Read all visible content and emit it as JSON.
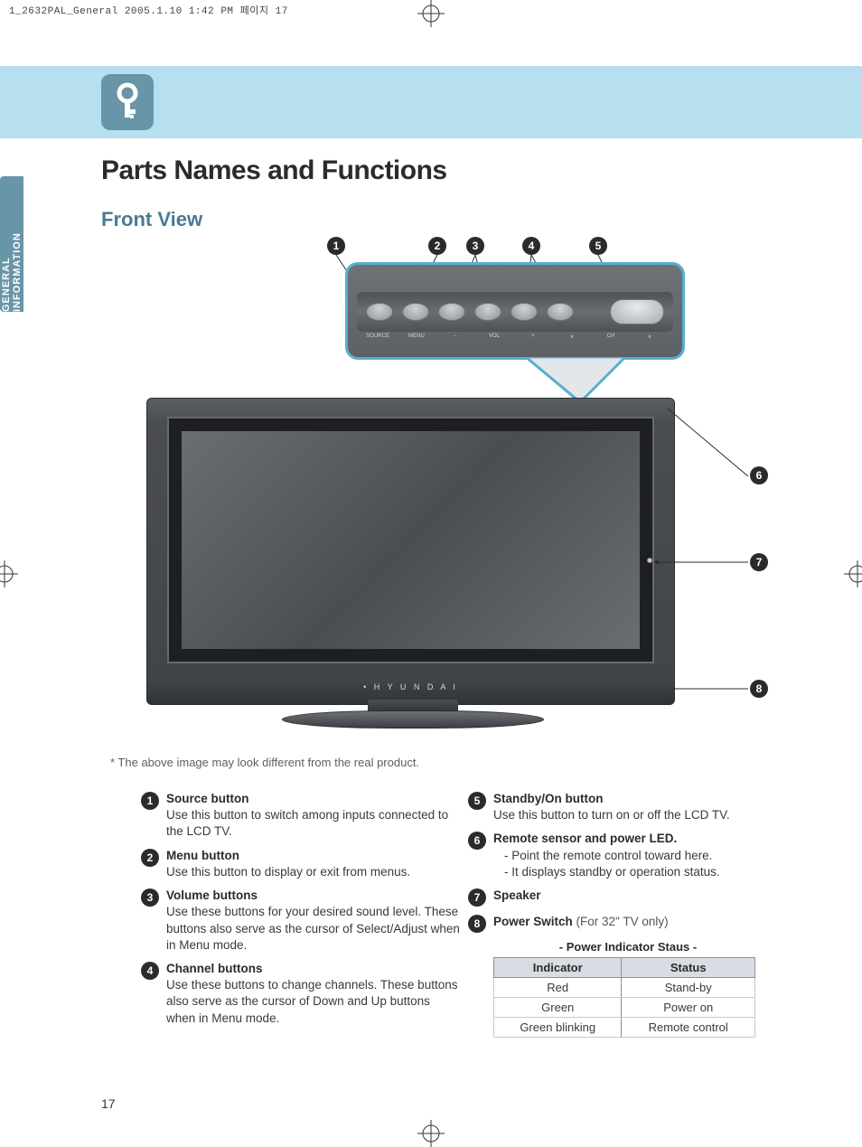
{
  "print_header": "1_2632PAL_General  2005.1.10 1:42 PM  페이지 17",
  "sidebar_label": "GENERAL INFORMATION",
  "title": "Parts Names and Functions",
  "subtitle": "Front View",
  "disclaimer": "* The above image may look different from the real product.",
  "tv_brand": "• H Y U N D A I",
  "panel_labels": [
    "SOURCE",
    "MENU",
    "-",
    "VOL",
    "+",
    "∨",
    "CH",
    "∧"
  ],
  "callouts_top": [
    "1",
    "2",
    "3",
    "4",
    "5"
  ],
  "callouts_side": [
    "6",
    "7",
    "8"
  ],
  "items_left": [
    {
      "num": "1",
      "title": "Source button",
      "desc": "Use this button to switch among inputs connected to the LCD TV."
    },
    {
      "num": "2",
      "title": "Menu button",
      "desc": "Use this button to display or exit from menus."
    },
    {
      "num": "3",
      "title": "Volume buttons",
      "desc": "Use these buttons for your desired sound level. These buttons also serve as the cursor of Select/Adjust when in Menu mode."
    },
    {
      "num": "4",
      "title": "Channel buttons",
      "desc": "Use these buttons to change channels. These buttons also serve as the cursor of Down and Up buttons when in Menu mode."
    }
  ],
  "items_right": [
    {
      "num": "5",
      "title": "Standby/On button",
      "desc": "Use this button to turn on or off the LCD TV."
    },
    {
      "num": "6",
      "title": "Remote sensor and power LED.",
      "desc": "",
      "subs": [
        "- Point the remote control toward here.",
        "- It displays standby or operation status."
      ]
    },
    {
      "num": "7",
      "title": "Speaker",
      "desc": ""
    },
    {
      "num": "8",
      "title": "Power Switch",
      "extra": " (For 32\" TV only)",
      "desc": ""
    }
  ],
  "table_caption": "- Power Indicator Staus -",
  "table": {
    "columns": [
      "Indicator",
      "Status"
    ],
    "rows": [
      [
        "Red",
        "Stand-by"
      ],
      [
        "Green",
        "Power on"
      ],
      [
        "Green blinking",
        "Remote control"
      ]
    ]
  },
  "page_number": "17",
  "colors": {
    "band": "#b6dff0",
    "accent": "#6995a8",
    "callout_border": "#59aed1",
    "heading": "#4a7a94"
  }
}
